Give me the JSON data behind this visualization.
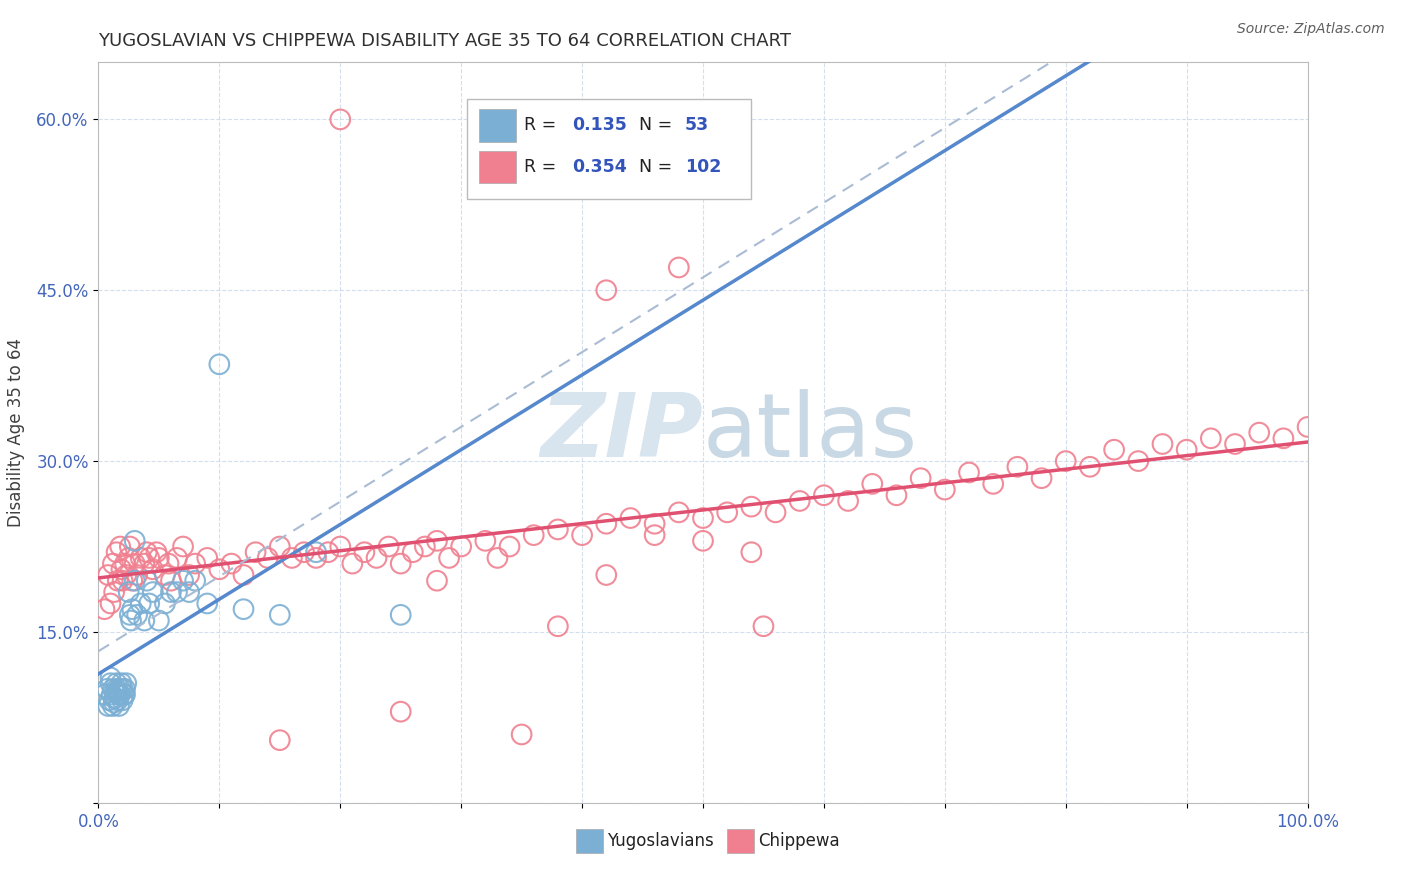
{
  "title": "YUGOSLAVIAN VS CHIPPEWA DISABILITY AGE 35 TO 64 CORRELATION CHART",
  "source_text": "Source: ZipAtlas.com",
  "ylabel": "Disability Age 35 to 64",
  "xlim": [
    0.0,
    1.0
  ],
  "ylim": [
    0.0,
    0.65
  ],
  "xticks": [
    0.0,
    0.1,
    0.2,
    0.3,
    0.4,
    0.5,
    0.6,
    0.7,
    0.8,
    0.9,
    1.0
  ],
  "xticklabels": [
    "0.0%",
    "",
    "",
    "",
    "",
    "",
    "",
    "",
    "",
    "",
    "100.0%"
  ],
  "yticks": [
    0.0,
    0.15,
    0.3,
    0.45,
    0.6
  ],
  "yticklabels": [
    "",
    "15.0%",
    "30.0%",
    "45.0%",
    "60.0%"
  ],
  "color_yugo": "#7bafd4",
  "color_chip": "#f08090",
  "color_yugo_line": "#5588cc",
  "color_chip_line": "#e05070",
  "color_dashed": "#aabbd4",
  "color_grid": "#c8d8e8",
  "color_title": "#303030",
  "color_axis_labels": "#4466bb",
  "color_legend_values": "#3355bb",
  "color_watermark": "#d8e4ee",
  "background_color": "#ffffff",
  "yugo_x": [
    0.005,
    0.007,
    0.008,
    0.009,
    0.01,
    0.01,
    0.011,
    0.012,
    0.012,
    0.013,
    0.013,
    0.014,
    0.014,
    0.015,
    0.015,
    0.016,
    0.016,
    0.017,
    0.017,
    0.018,
    0.018,
    0.019,
    0.02,
    0.02,
    0.021,
    0.022,
    0.022,
    0.023,
    0.025,
    0.026,
    0.027,
    0.028,
    0.03,
    0.032,
    0.035,
    0.038,
    0.04,
    0.042,
    0.045,
    0.05,
    0.055,
    0.06,
    0.065,
    0.07,
    0.075,
    0.08,
    0.09,
    0.1,
    0.12,
    0.15,
    0.18,
    0.25,
    0.03
  ],
  "yugo_y": [
    0.095,
    0.1,
    0.085,
    0.09,
    0.105,
    0.11,
    0.095,
    0.1,
    0.085,
    0.092,
    0.088,
    0.092,
    0.097,
    0.1,
    0.105,
    0.09,
    0.098,
    0.085,
    0.095,
    0.1,
    0.095,
    0.105,
    0.1,
    0.09,
    0.095,
    0.1,
    0.095,
    0.105,
    0.185,
    0.165,
    0.16,
    0.17,
    0.195,
    0.165,
    0.175,
    0.16,
    0.195,
    0.175,
    0.185,
    0.16,
    0.175,
    0.185,
    0.185,
    0.195,
    0.185,
    0.195,
    0.175,
    0.385,
    0.17,
    0.165,
    0.22,
    0.165,
    0.23
  ],
  "chip_x": [
    0.005,
    0.008,
    0.01,
    0.012,
    0.013,
    0.015,
    0.016,
    0.018,
    0.019,
    0.02,
    0.022,
    0.023,
    0.025,
    0.026,
    0.028,
    0.03,
    0.032,
    0.035,
    0.038,
    0.04,
    0.042,
    0.045,
    0.048,
    0.05,
    0.055,
    0.058,
    0.06,
    0.065,
    0.07,
    0.075,
    0.08,
    0.09,
    0.1,
    0.11,
    0.12,
    0.13,
    0.14,
    0.15,
    0.16,
    0.17,
    0.18,
    0.19,
    0.2,
    0.21,
    0.22,
    0.23,
    0.24,
    0.25,
    0.26,
    0.27,
    0.28,
    0.29,
    0.3,
    0.32,
    0.34,
    0.36,
    0.38,
    0.4,
    0.42,
    0.44,
    0.46,
    0.48,
    0.5,
    0.52,
    0.54,
    0.56,
    0.58,
    0.6,
    0.62,
    0.64,
    0.66,
    0.68,
    0.7,
    0.72,
    0.74,
    0.76,
    0.78,
    0.8,
    0.82,
    0.84,
    0.86,
    0.88,
    0.9,
    0.92,
    0.94,
    0.96,
    0.98,
    1.0,
    0.35,
    0.25,
    0.15,
    0.42,
    0.48,
    0.55,
    0.2,
    0.28,
    0.33,
    0.38,
    0.42,
    0.46,
    0.5,
    0.54
  ],
  "chip_y": [
    0.17,
    0.2,
    0.175,
    0.21,
    0.185,
    0.22,
    0.195,
    0.225,
    0.205,
    0.195,
    0.21,
    0.2,
    0.215,
    0.225,
    0.195,
    0.21,
    0.2,
    0.215,
    0.21,
    0.22,
    0.215,
    0.205,
    0.22,
    0.215,
    0.2,
    0.21,
    0.195,
    0.215,
    0.225,
    0.2,
    0.21,
    0.215,
    0.205,
    0.21,
    0.2,
    0.22,
    0.215,
    0.225,
    0.215,
    0.22,
    0.215,
    0.22,
    0.225,
    0.21,
    0.22,
    0.215,
    0.225,
    0.21,
    0.22,
    0.225,
    0.23,
    0.215,
    0.225,
    0.23,
    0.225,
    0.235,
    0.24,
    0.235,
    0.245,
    0.25,
    0.245,
    0.255,
    0.25,
    0.255,
    0.26,
    0.255,
    0.265,
    0.27,
    0.265,
    0.28,
    0.27,
    0.285,
    0.275,
    0.29,
    0.28,
    0.295,
    0.285,
    0.3,
    0.295,
    0.31,
    0.3,
    0.315,
    0.31,
    0.32,
    0.315,
    0.325,
    0.32,
    0.33,
    0.06,
    0.08,
    0.055,
    0.45,
    0.47,
    0.155,
    0.6,
    0.195,
    0.215,
    0.155,
    0.2,
    0.235,
    0.23,
    0.22
  ]
}
